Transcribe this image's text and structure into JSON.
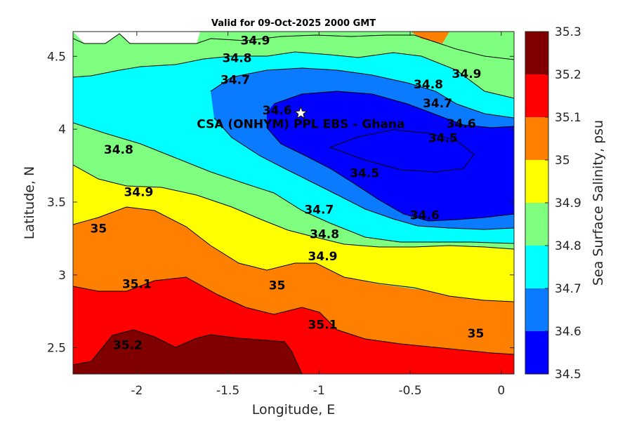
{
  "chart_data": {
    "type": "contour",
    "title": "Valid for 09-Oct-2025 2000 GMT",
    "xlabel": "Longitude, E",
    "ylabel": "Latitude, N",
    "xlim": [
      -2.35,
      0.07
    ],
    "ylim": [
      2.32,
      4.67
    ],
    "xticks": [
      -2,
      -1.5,
      -1,
      -0.5,
      0
    ],
    "xtick_labels": [
      "-2",
      "-1.5",
      "-1",
      "-0.5",
      "0"
    ],
    "yticks": [
      2.5,
      3,
      3.5,
      4,
      4.5
    ],
    "ytick_labels": [
      "2.5",
      "3",
      "3.5",
      "4",
      "4.5"
    ],
    "colorbar": {
      "label": "Sea Surface Salinity, psu",
      "levels": [
        34.5,
        34.6,
        34.7,
        34.8,
        34.9,
        35,
        35.1,
        35.2,
        35.3
      ],
      "tick_labels": [
        "34.5",
        "34.6",
        "34.7",
        "34.8",
        "34.9",
        "35",
        "35.1",
        "35.2",
        "35.3"
      ],
      "colors": [
        "#0000ff",
        "#0a7bff",
        "#00ffff",
        "#7fff7f",
        "#ffff00",
        "#ff8000",
        "#ff0000",
        "#800000"
      ]
    },
    "contour_labels": [
      {
        "text": "34.9",
        "lon": -1.35,
        "lat": 4.61
      },
      {
        "text": "34.8",
        "lon": -1.45,
        "lat": 4.49
      },
      {
        "text": "34.7",
        "lon": -1.46,
        "lat": 4.34
      },
      {
        "text": "34.9",
        "lon": -0.19,
        "lat": 4.38
      },
      {
        "text": "34.8",
        "lon": -0.4,
        "lat": 4.31
      },
      {
        "text": "34.7",
        "lon": -0.35,
        "lat": 4.18
      },
      {
        "text": "34.6",
        "lon": -0.22,
        "lat": 4.04
      },
      {
        "text": "34.5",
        "lon": -0.32,
        "lat": 3.94
      },
      {
        "text": "34.5",
        "lon": -0.75,
        "lat": 3.7
      },
      {
        "text": "34.6",
        "lon": -0.42,
        "lat": 3.41
      },
      {
        "text": "34.8",
        "lon": -2.1,
        "lat": 3.86
      },
      {
        "text": "34.9",
        "lon": -1.99,
        "lat": 3.57
      },
      {
        "text": "34.7",
        "lon": -1.0,
        "lat": 3.45
      },
      {
        "text": "34.8",
        "lon": -0.97,
        "lat": 3.28
      },
      {
        "text": "34.9",
        "lon": -0.98,
        "lat": 3.13
      },
      {
        "text": "35",
        "lon": -2.21,
        "lat": 3.32
      },
      {
        "text": "35.1",
        "lon": -2.0,
        "lat": 2.94
      },
      {
        "text": "35",
        "lon": -1.23,
        "lat": 2.93
      },
      {
        "text": "35.1",
        "lon": -0.98,
        "lat": 2.66
      },
      {
        "text": "35",
        "lon": -0.14,
        "lat": 2.6
      },
      {
        "text": "35.2",
        "lon": -2.05,
        "lat": 2.52
      },
      {
        "text": "34.6",
        "lon": -1.23,
        "lat": 4.13
      }
    ],
    "annotation": {
      "text": "CSA (ONHYM) PPL EBS  - Ghana",
      "marker": "star",
      "lon": -1.1,
      "lat": 4.11
    }
  }
}
